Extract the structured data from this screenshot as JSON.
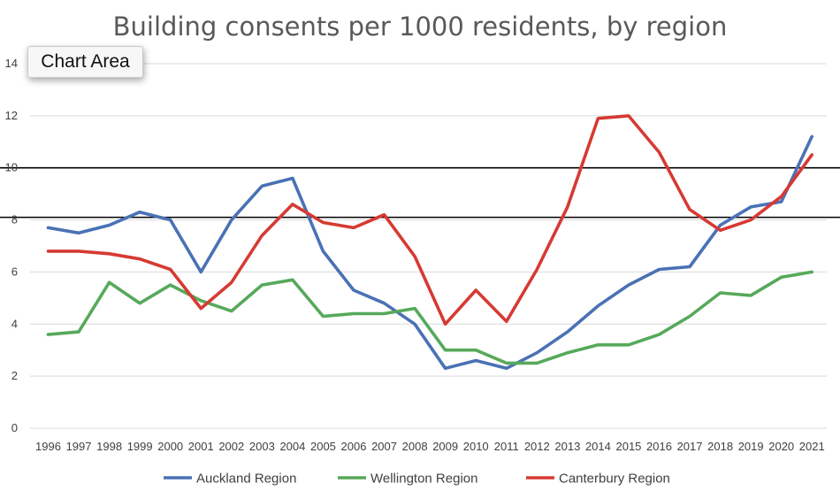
{
  "tooltip": {
    "label": "Chart Area"
  },
  "colors": {
    "auckland": "#4a71b5",
    "wellington": "#56a95a",
    "canterbury": "#d63a33",
    "reference_lines": "#000000"
  },
  "chart_data": {
    "type": "line",
    "title": "Building consents per 1000 residents, by region",
    "xlabel": "",
    "ylabel": "",
    "categories": [
      "1996",
      "1997",
      "1998",
      "1999",
      "2000",
      "2001",
      "2002",
      "2003",
      "2004",
      "2005",
      "2006",
      "2007",
      "2008",
      "2009",
      "2010",
      "2011",
      "2012",
      "2013",
      "2014",
      "2015",
      "2016",
      "2017",
      "2018",
      "2019",
      "2020",
      "2021"
    ],
    "ylim": [
      0,
      14
    ],
    "yticks": [
      0,
      2,
      4,
      6,
      8,
      10,
      12,
      14
    ],
    "grid": true,
    "legend": "bottom",
    "reference_lines": [
      10,
      8.1
    ],
    "series": [
      {
        "name": "Auckland Region",
        "color": "#4a71b5",
        "values": [
          7.7,
          7.5,
          7.8,
          8.3,
          8.0,
          6.0,
          8.0,
          9.3,
          9.6,
          6.8,
          5.3,
          4.8,
          4.0,
          2.3,
          2.6,
          2.3,
          2.9,
          3.7,
          4.7,
          5.5,
          6.1,
          6.2,
          7.8,
          8.5,
          8.7,
          11.2
        ]
      },
      {
        "name": "Wellington Region",
        "color": "#56a95a",
        "values": [
          3.6,
          3.7,
          5.6,
          4.8,
          5.5,
          4.9,
          4.5,
          5.5,
          5.7,
          4.3,
          4.4,
          4.4,
          4.6,
          3.0,
          3.0,
          2.5,
          2.5,
          2.9,
          3.2,
          3.2,
          3.6,
          4.3,
          5.2,
          5.1,
          5.8,
          6.0
        ]
      },
      {
        "name": "Canterbury Region",
        "color": "#d63a33",
        "values": [
          6.8,
          6.8,
          6.7,
          6.5,
          6.1,
          4.6,
          5.6,
          7.4,
          8.6,
          7.9,
          7.7,
          8.2,
          6.6,
          4.0,
          5.3,
          4.1,
          6.1,
          8.5,
          11.9,
          12.0,
          10.6,
          8.4,
          7.6,
          8.0,
          8.9,
          10.5
        ]
      }
    ]
  }
}
